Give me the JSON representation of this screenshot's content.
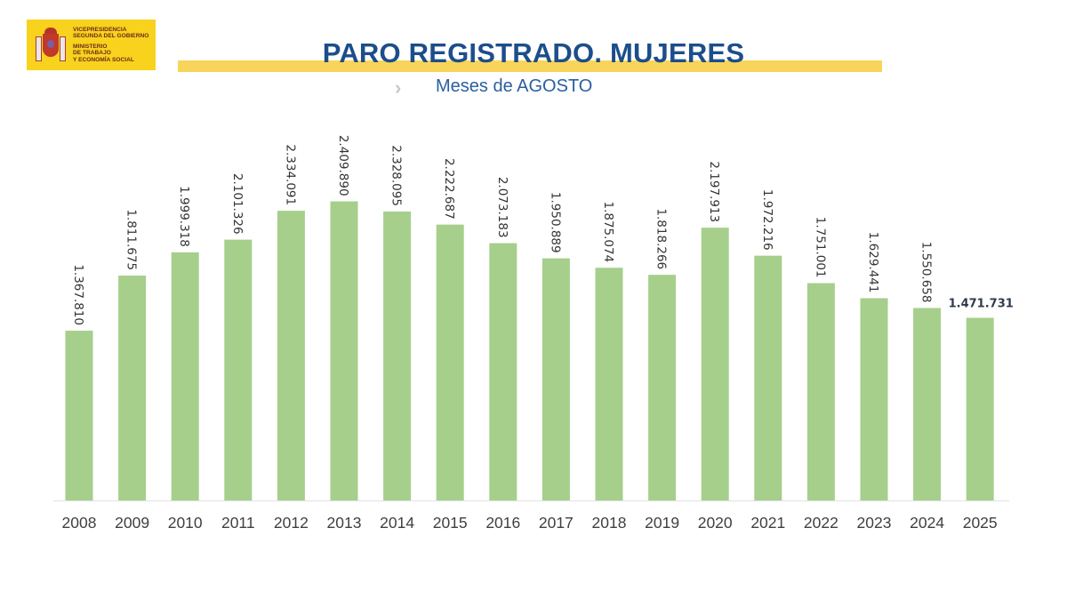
{
  "logo": {
    "line1": "VICEPRESIDENCIA",
    "line2": "SEGUNDA DEL GOBIERNO",
    "line3": "MINISTERIO",
    "line4": "DE TRABAJO",
    "line5": "Y ECONOMÍA SOCIAL"
  },
  "chart_data": {
    "type": "bar",
    "title": "PARO REGISTRADO. MUJERES",
    "subtitle": "Meses de AGOSTO",
    "xlabel": "",
    "ylabel": "",
    "ylim": [
      0,
      2600000
    ],
    "grid": false,
    "categories": [
      "2008",
      "2009",
      "2010",
      "2011",
      "2012",
      "2013",
      "2014",
      "2015",
      "2016",
      "2017",
      "2018",
      "2019",
      "2020",
      "2021",
      "2022",
      "2023",
      "2024",
      "2025"
    ],
    "values": [
      1367810,
      1811675,
      1999318,
      2101326,
      2334091,
      2409890,
      2328095,
      2222687,
      2073183,
      1950889,
      1875074,
      1818266,
      2197913,
      1972216,
      1751001,
      1629441,
      1550658,
      1471731
    ],
    "labels": [
      "1.367.810",
      "1.811.675",
      "1.999.318",
      "2.101.326",
      "2.334.091",
      "2.409.890",
      "2.328.095",
      "2.222.687",
      "2.073.183",
      "1.950.889",
      "1.875.074",
      "1.818.266",
      "2.197.913",
      "1.972.216",
      "1.751.001",
      "1.629.441",
      "1.550.658",
      "1.471.731"
    ],
    "highlight_index": 17,
    "bar_color": "#a6cf8b",
    "highlight_label_color": "#2e3a4a"
  }
}
